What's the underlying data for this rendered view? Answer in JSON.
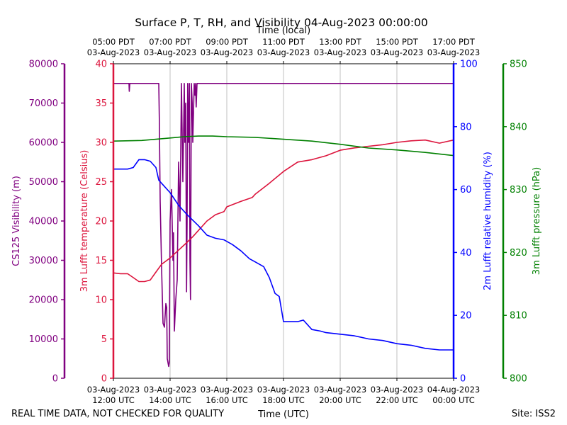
{
  "chart_data": {
    "type": "line",
    "title": "Surface P, T, RH, and Visibility 04-Aug-2023 00:00:00",
    "top_axis_label": "Time (local)",
    "xlabel": "Time (UTC)",
    "footer_left": "REAL TIME DATA, NOT CHECKED FOR QUALITY",
    "footer_right": "Site: ISS2",
    "x_range_hours_utc": [
      12,
      24
    ],
    "x_ticks_utc": [
      {
        "h": 12,
        "date": "03-Aug-2023",
        "time": "12:00 UTC"
      },
      {
        "h": 14,
        "date": "03-Aug-2023",
        "time": "14:00 UTC"
      },
      {
        "h": 16,
        "date": "03-Aug-2023",
        "time": "16:00 UTC"
      },
      {
        "h": 18,
        "date": "03-Aug-2023",
        "time": "18:00 UTC"
      },
      {
        "h": 20,
        "date": "03-Aug-2023",
        "time": "20:00 UTC"
      },
      {
        "h": 22,
        "date": "03-Aug-2023",
        "time": "22:00 UTC"
      },
      {
        "h": 24,
        "date": "04-Aug-2023",
        "time": "00:00 UTC"
      }
    ],
    "x_ticks_local": [
      {
        "h": 12,
        "time": "05:00 PDT",
        "date": "03-Aug-2023"
      },
      {
        "h": 14,
        "time": "07:00 PDT",
        "date": "03-Aug-2023"
      },
      {
        "h": 16,
        "time": "09:00 PDT",
        "date": "03-Aug-2023"
      },
      {
        "h": 18,
        "time": "11:00 PDT",
        "date": "03-Aug-2023"
      },
      {
        "h": 20,
        "time": "13:00 PDT",
        "date": "03-Aug-2023"
      },
      {
        "h": 22,
        "time": "15:00 PDT",
        "date": "03-Aug-2023"
      },
      {
        "h": 24,
        "time": "17:00 PDT",
        "date": "03-Aug-2023"
      }
    ],
    "axes": {
      "visibility": {
        "label": "CS125 Visibility (m)",
        "ylim": [
          0,
          80000
        ],
        "ticks": [
          0,
          10000,
          20000,
          30000,
          40000,
          50000,
          60000,
          70000,
          80000
        ],
        "color": "#800080"
      },
      "temperature": {
        "label": "3m Lufft temperature (Celsius)",
        "ylim": [
          0,
          40
        ],
        "ticks": [
          0,
          5,
          10,
          15,
          20,
          25,
          30,
          35,
          40
        ],
        "color": "#dc143c"
      },
      "humidity": {
        "label": "2m Lufft relative humidity (%)",
        "ylim": [
          0,
          100
        ],
        "ticks": [
          0,
          20,
          40,
          60,
          80,
          100
        ],
        "color": "#0000ff"
      },
      "pressure": {
        "label": "3m Lufft pressure (hPa)",
        "ylim": [
          800,
          850
        ],
        "ticks": [
          800,
          810,
          820,
          830,
          840,
          850
        ],
        "color": "#008000"
      }
    },
    "series": [
      {
        "name": "CS125 Visibility",
        "axis": "visibility",
        "color": "#800080",
        "x": [
          12.0,
          12.55,
          12.56,
          12.58,
          12.6,
          13.6,
          13.62,
          13.65,
          13.7,
          13.75,
          13.8,
          13.85,
          13.88,
          13.9,
          13.95,
          13.97,
          14.0,
          14.05,
          14.1,
          14.12,
          14.15,
          14.2,
          14.25,
          14.3,
          14.35,
          14.4,
          14.45,
          14.5,
          14.52,
          14.55,
          14.58,
          14.6,
          14.62,
          14.65,
          14.68,
          14.7,
          14.72,
          14.75,
          14.78,
          14.8,
          14.85,
          14.88,
          14.9,
          14.92,
          14.95,
          15.0,
          24.0
        ],
        "y": [
          75000,
          75000,
          73000,
          75000,
          75000,
          75000,
          66000,
          45000,
          28000,
          14000,
          13000,
          19000,
          18000,
          5000,
          3000,
          4000,
          40000,
          48000,
          30000,
          37000,
          12000,
          20000,
          25000,
          55000,
          40000,
          75000,
          50000,
          75000,
          60000,
          70000,
          22000,
          40000,
          75000,
          60000,
          75000,
          30000,
          20000,
          75000,
          70000,
          60000,
          75000,
          72000,
          75000,
          69000,
          75000,
          75000,
          75000
        ]
      },
      {
        "name": "3m Lufft temperature",
        "axis": "temperature",
        "color": "#dc143c",
        "x": [
          12.0,
          12.25,
          12.5,
          12.7,
          12.9,
          13.1,
          13.3,
          13.5,
          13.7,
          14.0,
          14.3,
          14.6,
          14.8,
          15.0,
          15.3,
          15.6,
          15.9,
          16.0,
          16.5,
          16.9,
          17.0,
          17.5,
          18.0,
          18.5,
          19.0,
          19.5,
          20.0,
          20.5,
          21.0,
          21.5,
          22.0,
          22.5,
          23.0,
          23.5,
          24.0
        ],
        "y": [
          13.4,
          13.3,
          13.3,
          12.8,
          12.3,
          12.3,
          12.5,
          13.5,
          14.5,
          15.3,
          16.3,
          17.3,
          18.0,
          18.8,
          20.0,
          20.8,
          21.2,
          21.8,
          22.5,
          23.0,
          23.4,
          24.8,
          26.3,
          27.5,
          27.8,
          28.3,
          29.0,
          29.3,
          29.5,
          29.7,
          30.0,
          30.2,
          30.3,
          29.9,
          30.3
        ]
      },
      {
        "name": "2m Lufft relative humidity",
        "axis": "humidity",
        "color": "#0000ff",
        "x": [
          12.0,
          12.5,
          12.7,
          12.9,
          13.1,
          13.3,
          13.5,
          13.6,
          13.8,
          14.0,
          14.3,
          14.6,
          15.0,
          15.3,
          15.6,
          15.9,
          16.2,
          16.5,
          16.8,
          17.0,
          17.3,
          17.5,
          17.7,
          17.85,
          18.0,
          18.5,
          18.7,
          19.0,
          19.3,
          19.5,
          20.0,
          20.5,
          21.0,
          21.5,
          22.0,
          22.5,
          23.0,
          23.5,
          24.0
        ],
        "y": [
          66.5,
          66.5,
          67.0,
          69.5,
          69.5,
          69.0,
          67.0,
          63.0,
          61.0,
          59.0,
          55.0,
          52.0,
          48.5,
          45.5,
          44.5,
          44.0,
          42.5,
          40.5,
          38.0,
          37.0,
          35.5,
          32.0,
          27.0,
          26.0,
          18.0,
          18.0,
          18.5,
          15.5,
          15.0,
          14.5,
          14.0,
          13.5,
          12.5,
          12.0,
          11.0,
          10.5,
          9.5,
          9.0,
          9.0
        ]
      },
      {
        "name": "3m Lufft pressure",
        "axis": "pressure",
        "color": "#008000",
        "x": [
          12.0,
          13.0,
          14.0,
          14.5,
          15.0,
          15.5,
          16.0,
          17.0,
          18.0,
          19.0,
          20.0,
          21.0,
          22.0,
          23.0,
          24.0
        ],
        "y": [
          837.7,
          837.8,
          838.2,
          838.4,
          838.5,
          838.5,
          838.4,
          838.3,
          838.0,
          837.7,
          837.2,
          836.6,
          836.3,
          835.9,
          835.4
        ]
      }
    ]
  }
}
